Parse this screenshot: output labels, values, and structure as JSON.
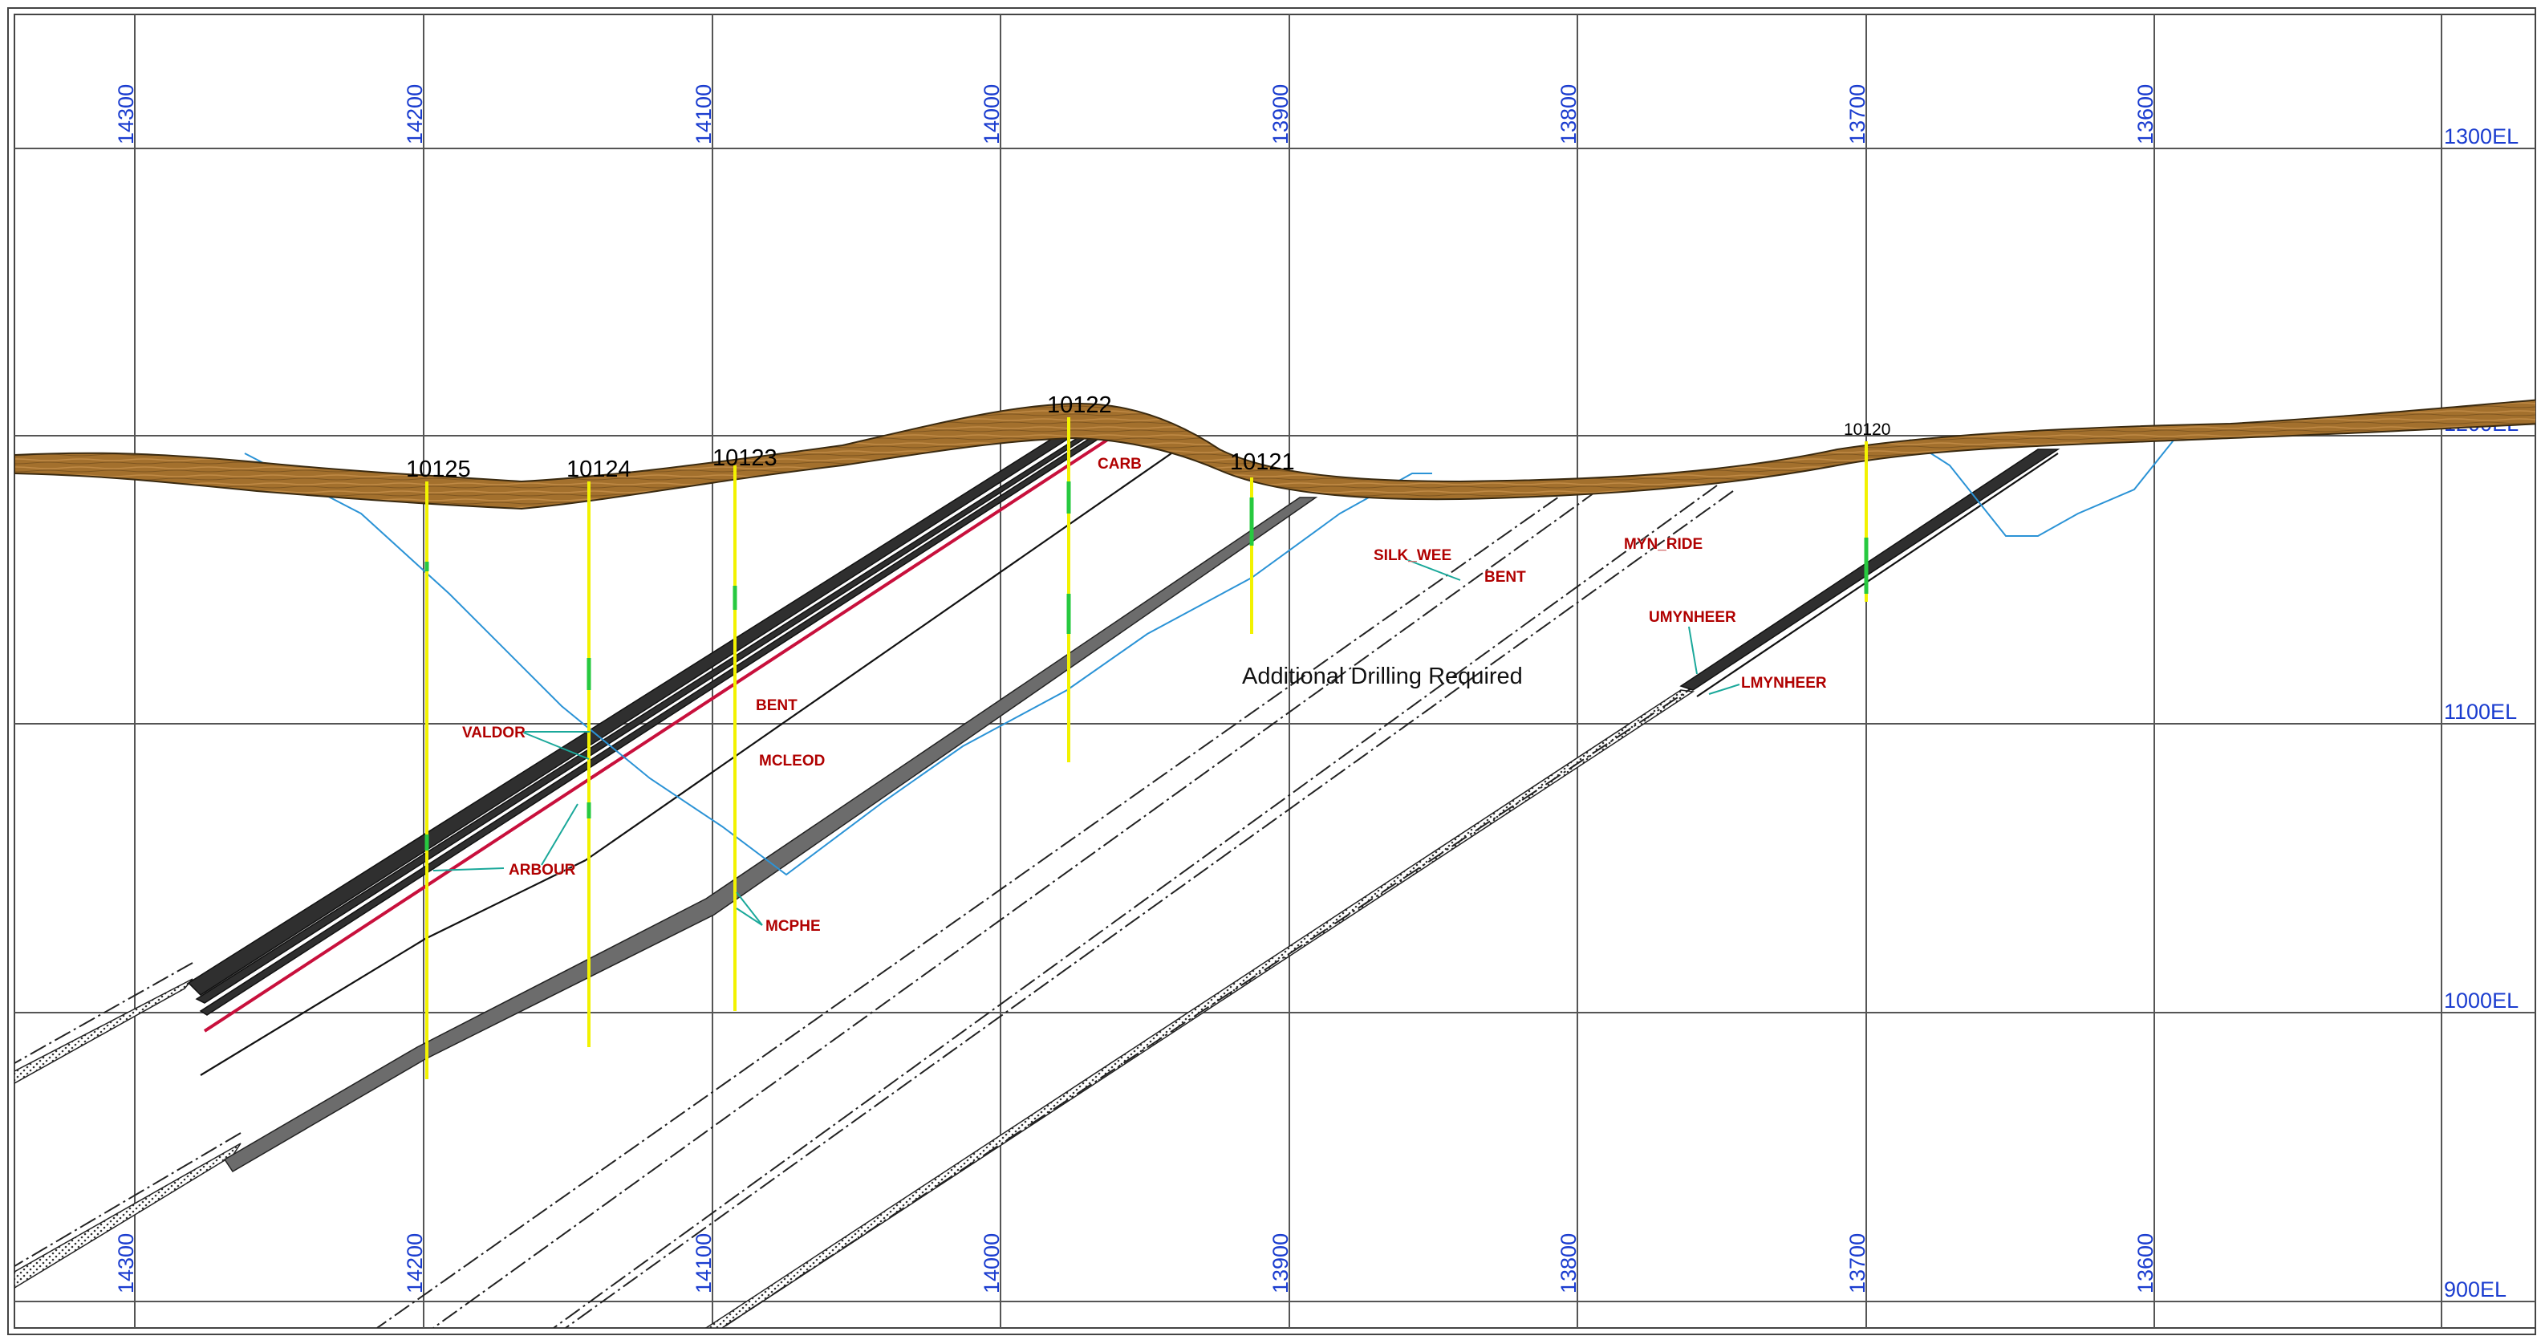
{
  "eastings_top": [
    "14300",
    "14200",
    "14100",
    "14000",
    "13900",
    "13800",
    "13700",
    "13600"
  ],
  "eastings_bottom": [
    "14300",
    "14200",
    "14100",
    "14000",
    "13900",
    "13800",
    "13700",
    "13600"
  ],
  "elevations": [
    "1300EL",
    "1200EL",
    "1100EL",
    "1000EL",
    "900EL"
  ],
  "holes": [
    "10125",
    "10124",
    "10123",
    "10122",
    "10121",
    "10120"
  ],
  "units": {
    "carb": "CARB",
    "silk_wee": "SILK_WEE",
    "bent_upper": "BENT",
    "myn_ride": "MYN_RIDE",
    "umynheer": "UMYNHEER",
    "lmynheer": "LMYNHEER",
    "bent": "BENT",
    "valdor": "VALDOR",
    "mcleod": "MCLEOD",
    "arbour": "ARBOUR",
    "mcphe": "MCPHE"
  },
  "annotation": "Additional Drilling Required",
  "colors": {
    "grid": "#555555",
    "axis_labels": "#1a3ccf",
    "overburden": "#a3702d",
    "seams": "#2f2f2f",
    "drillholes": "#f2f200",
    "water_table": "#2b93d6",
    "unit_labels": "#b00000"
  }
}
